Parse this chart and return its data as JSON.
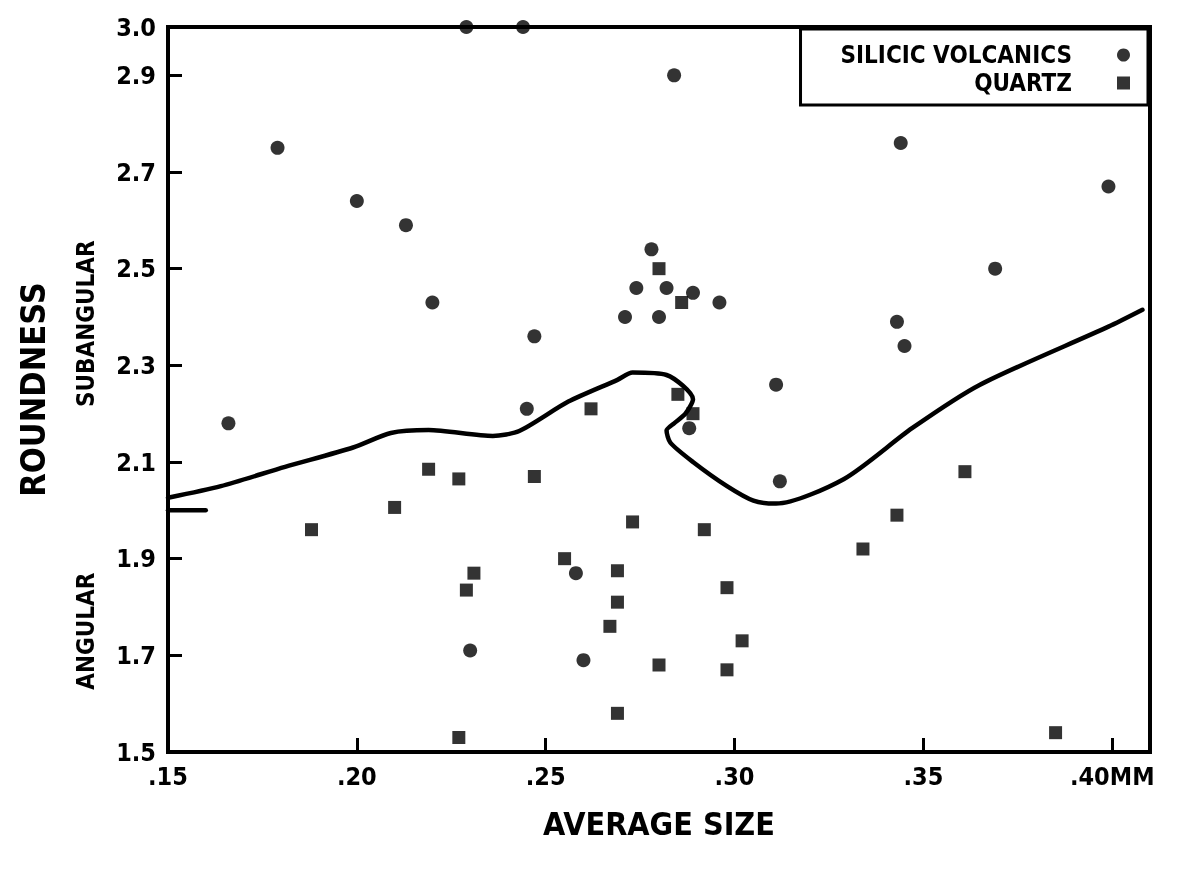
{
  "chart_data": {
    "type": "scatter",
    "xlabel": "AVERAGE SIZE",
    "ylabel": "ROUNDNESS",
    "annotations": [
      "SUBANGULAR",
      "ANGULAR"
    ],
    "xlim": [
      0.15,
      0.41
    ],
    "xticks": [
      {
        "value": 0.15,
        "label": ".15"
      },
      {
        "value": 0.2,
        "label": ".20"
      },
      {
        "value": 0.25,
        "label": ".25"
      },
      {
        "value": 0.3,
        "label": ".30"
      },
      {
        "value": 0.35,
        "label": ".35"
      },
      {
        "value": 0.4,
        "label": ".40MM"
      }
    ],
    "ylim": [
      1.5,
      3.0
    ],
    "yticks": [
      1.5,
      1.7,
      1.9,
      2.1,
      2.3,
      2.5,
      2.7,
      2.9,
      {
        "value": 3,
        "label": "3.0"
      }
    ],
    "grid": false,
    "legend": "top right",
    "series": [
      {
        "name": "SILICIC VOLCANICS",
        "marker": "circle",
        "color": "#000000",
        "x": [
          0.229,
          0.244,
          0.179,
          0.2,
          0.213,
          0.22,
          0.247,
          0.278,
          0.274,
          0.271,
          0.28,
          0.284,
          0.344,
          0.399,
          0.369,
          0.282,
          0.289,
          0.296,
          0.343,
          0.345,
          0.311,
          0.166,
          0.245,
          0.258,
          0.23,
          0.26,
          0.288,
          0.312
        ],
        "values": [
          3.0,
          3.0,
          2.75,
          2.64,
          2.59,
          2.43,
          2.36,
          2.54,
          2.46,
          2.4,
          2.4,
          2.9,
          2.76,
          2.67,
          2.5,
          2.46,
          2.45,
          2.43,
          2.39,
          2.34,
          2.26,
          2.18,
          2.21,
          1.87,
          1.71,
          1.69,
          2.17,
          2.06
        ]
      },
      {
        "name": "QUARTZ",
        "marker": "square",
        "color": "#000000",
        "x": [
          0.28,
          0.286,
          0.285,
          0.289,
          0.262,
          0.219,
          0.227,
          0.247,
          0.21,
          0.188,
          0.273,
          0.255,
          0.231,
          0.229,
          0.269,
          0.269,
          0.267,
          0.28,
          0.269,
          0.227,
          0.292,
          0.298,
          0.302,
          0.298,
          0.334,
          0.343,
          0.361,
          0.385
        ],
        "values": [
          2.5,
          2.43,
          2.24,
          2.2,
          2.21,
          2.085,
          2.065,
          2.07,
          2.006,
          1.96,
          1.976,
          1.9,
          1.87,
          1.835,
          1.875,
          1.81,
          1.76,
          1.68,
          1.58,
          1.53,
          1.96,
          1.84,
          1.73,
          1.67,
          1.92,
          1.99,
          2.08,
          1.54
        ]
      },
      {
        "type": "line",
        "marker": "none",
        "line_style": "solid",
        "color": "#000000",
        "x": [
          0.15,
          0.164,
          0.181,
          0.199,
          0.209,
          0.219,
          0.236,
          0.243,
          0.256,
          0.269,
          0.273,
          0.282,
          0.289,
          0.287,
          0.284,
          0.282,
          0.283,
          0.289,
          0.298,
          0.305,
          0.311,
          0.329,
          0.347,
          0.365,
          0.399,
          0.408
        ],
        "values": [
          2.026,
          2.05,
          2.09,
          2.13,
          2.16,
          2.166,
          2.154,
          2.164,
          2.225,
          2.27,
          2.285,
          2.28,
          2.23,
          2.2,
          2.18,
          2.165,
          2.14,
          2.1,
          2.05,
          2.02,
          2.014,
          2.065,
          2.17,
          2.26,
          2.38,
          2.415
        ]
      },
      {
        "type": "line",
        "marker": "none",
        "line_style": "solid",
        "color": "#000000",
        "x": [
          0.15,
          0.16
        ],
        "values": [
          2.0,
          2.0
        ]
      }
    ]
  }
}
